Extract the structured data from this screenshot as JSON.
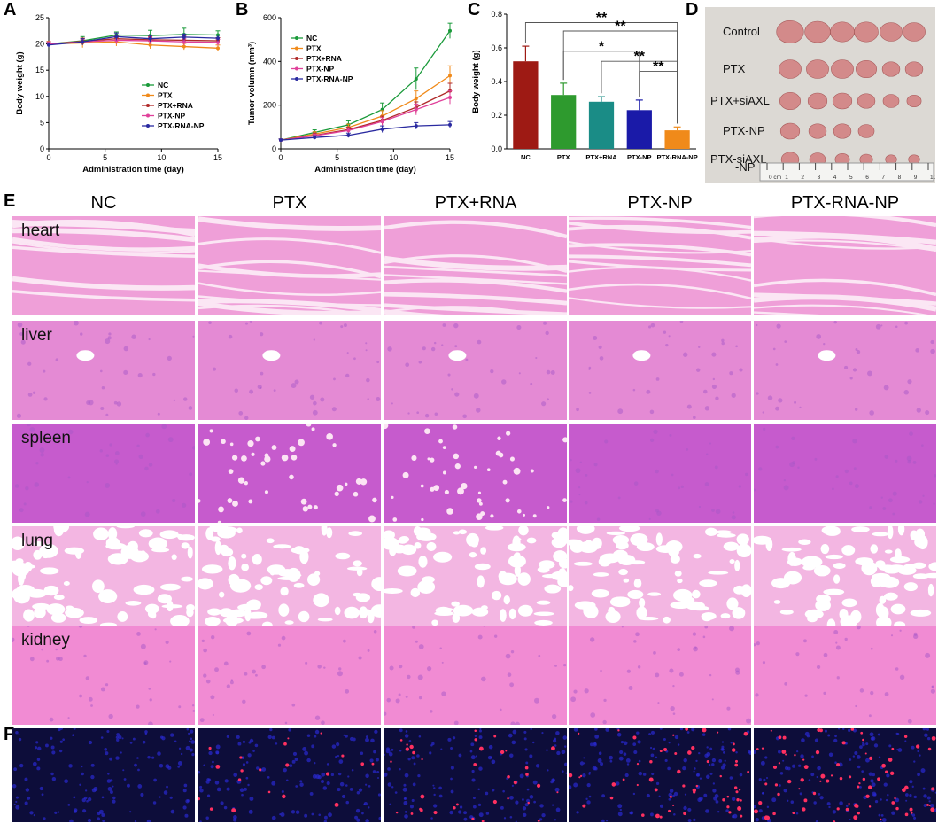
{
  "panels": {
    "a": "A",
    "b": "B",
    "c": "C",
    "d": "D",
    "e": "E",
    "f": "F"
  },
  "colors": {
    "NC": "#1a9a3a",
    "PTX": "#f08a1a",
    "PTX+RNA": "#b02a2a",
    "PTX-NP": "#e0409a",
    "PTX-RNA-NP": "#2a2aa0",
    "bar_NC": "#9e1a14",
    "bar_PTX": "#2e9a2e",
    "bar_PTX+RNA": "#1a8c86",
    "bar_PTX-NP": "#1a1aa8",
    "bar_PTX-RNA-NP": "#f08a1a",
    "he_pink": "#e98ad0",
    "dapi_blue": "#1a1a8a"
  },
  "chart_data": [
    {
      "id": "A",
      "type": "line",
      "xlabel": "Administration time (day)",
      "ylabel": "Body weight (g)",
      "xlim": [
        0,
        15
      ],
      "ylim": [
        0,
        25
      ],
      "xticks": [
        0,
        5,
        10,
        15
      ],
      "yticks": [
        0,
        5,
        10,
        15,
        20,
        25
      ],
      "x": [
        0,
        3,
        6,
        9,
        12,
        15
      ],
      "legend": "center-right",
      "series": [
        {
          "name": "NC",
          "values": [
            20.0,
            20.6,
            21.7,
            21.6,
            21.8,
            21.7
          ],
          "err": [
            0.4,
            0.8,
            0.6,
            1.0,
            1.2,
            0.8
          ]
        },
        {
          "name": "PTX",
          "values": [
            20.0,
            20.2,
            20.4,
            19.8,
            19.5,
            19.2
          ],
          "err": [
            0.5,
            0.9,
            0.8,
            0.7,
            0.6,
            0.6
          ]
        },
        {
          "name": "PTX+RNA",
          "values": [
            20.0,
            20.5,
            21.0,
            20.8,
            20.7,
            20.6
          ],
          "err": [
            0.4,
            0.6,
            0.6,
            0.6,
            0.8,
            0.6
          ]
        },
        {
          "name": "PTX-NP",
          "values": [
            20.0,
            20.4,
            20.7,
            20.6,
            20.4,
            20.3
          ],
          "err": [
            0.4,
            0.5,
            0.7,
            0.6,
            0.6,
            0.6
          ]
        },
        {
          "name": "PTX-RNA-NP",
          "values": [
            19.8,
            20.4,
            21.4,
            21.0,
            21.3,
            21.1
          ],
          "err": [
            0.4,
            0.6,
            0.7,
            0.6,
            0.6,
            0.6
          ]
        }
      ]
    },
    {
      "id": "B",
      "type": "line",
      "xlabel": "Administration time (day)",
      "ylabel": "Tumor volumn (mm³)",
      "xlim": [
        0,
        15
      ],
      "ylim": [
        0,
        600
      ],
      "xticks": [
        0,
        5,
        10,
        15
      ],
      "yticks": [
        0,
        200,
        400,
        600
      ],
      "x": [
        0,
        3,
        6,
        9,
        12,
        15
      ],
      "legend": "top-left",
      "series": [
        {
          "name": "NC",
          "values": [
            40,
            75,
            110,
            180,
            320,
            540
          ],
          "err": [
            5,
            12,
            18,
            30,
            50,
            35
          ]
        },
        {
          "name": "PTX",
          "values": [
            40,
            68,
            98,
            150,
            230,
            335
          ],
          "err": [
            5,
            10,
            15,
            25,
            35,
            45
          ]
        },
        {
          "name": "PTX+RNA",
          "values": [
            40,
            62,
            88,
            130,
            190,
            265
          ],
          "err": [
            5,
            10,
            12,
            20,
            25,
            35
          ]
        },
        {
          "name": "PTX-NP",
          "values": [
            40,
            60,
            84,
            125,
            180,
            235
          ],
          "err": [
            5,
            8,
            12,
            18,
            25,
            30
          ]
        },
        {
          "name": "PTX-RNA-NP",
          "values": [
            40,
            52,
            62,
            90,
            105,
            110
          ],
          "err": [
            5,
            8,
            10,
            15,
            15,
            15
          ]
        }
      ]
    },
    {
      "id": "C",
      "type": "bar",
      "xlabel": "",
      "ylabel": "Body weight (g)",
      "ylim": [
        0,
        0.8
      ],
      "yticks": [
        0.0,
        0.2,
        0.4,
        0.6,
        0.8
      ],
      "categories": [
        "NC",
        "PTX",
        "PTX+RNA",
        "PTX-NP",
        "PTX-RNA-NP"
      ],
      "values": [
        0.52,
        0.32,
        0.28,
        0.23,
        0.11
      ],
      "err": [
        0.09,
        0.07,
        0.03,
        0.06,
        0.02
      ],
      "significance": [
        {
          "from": 0,
          "to": 4,
          "label": "**"
        },
        {
          "from": 1,
          "to": 4,
          "label": "**"
        },
        {
          "from": 1,
          "to": 3,
          "label": "*"
        },
        {
          "from": 2,
          "to": 4,
          "label": "**"
        },
        {
          "from": 3,
          "to": 4,
          "label": "**"
        }
      ]
    }
  ],
  "panel_d": {
    "rows": [
      "Control",
      "PTX",
      "PTX+siAXL",
      "PTX-NP",
      "PTX-siAXL",
      "-NP"
    ],
    "ruler_labels": [
      "0 cm",
      "1",
      "2",
      "3",
      "4",
      "5",
      "6",
      "7",
      "8",
      "9",
      "10"
    ]
  },
  "panel_e": {
    "columns": [
      "NC",
      "PTX",
      "PTX+RNA",
      "PTX-NP",
      "PTX-RNA-NP"
    ],
    "rows": [
      "heart",
      "liver",
      "spleen",
      "lung",
      "kidney"
    ]
  }
}
